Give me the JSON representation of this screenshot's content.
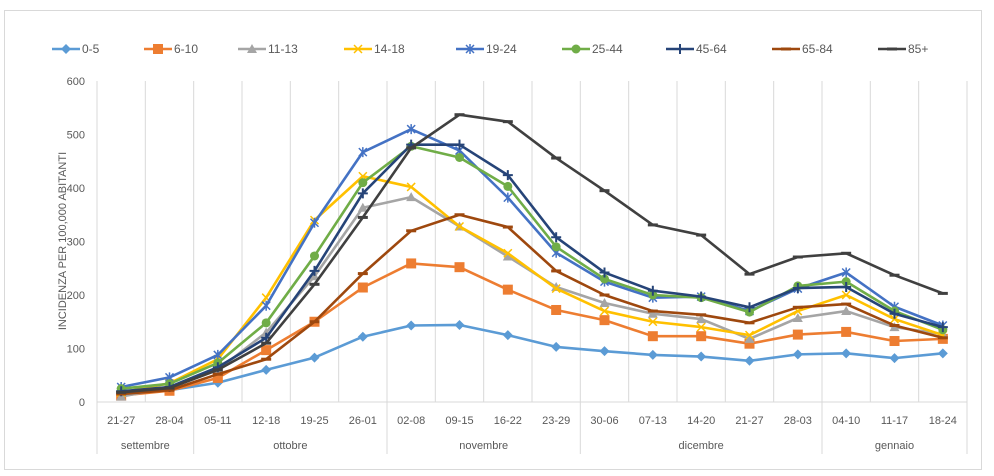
{
  "chart_data": {
    "type": "line",
    "title": "",
    "xlabel": "",
    "ylabel": "INCIDENZA PER 100,000 ABITANTI",
    "ylim": [
      0,
      600
    ],
    "yticks": [
      0,
      100,
      200,
      300,
      400,
      500,
      600
    ],
    "grid": "vertical",
    "legend_position": "top",
    "categories": [
      "21-27",
      "28-04",
      "05-11",
      "12-18",
      "19-25",
      "26-01",
      "02-08",
      "09-15",
      "16-22",
      "23-29",
      "30-06",
      "07-13",
      "14-20",
      "21-27",
      "28-03",
      "04-10",
      "11-17",
      "18-24"
    ],
    "month_groups": [
      {
        "label": "settembre",
        "span": 2
      },
      {
        "label": "ottobre",
        "span": 4
      },
      {
        "label": "novembre",
        "span": 4
      },
      {
        "label": "dicembre",
        "span": 5
      },
      {
        "label": "gennaio",
        "span": 3
      }
    ],
    "series": [
      {
        "name": "0-5",
        "color": "#5b9bd5",
        "marker": "diamond",
        "values": [
          18,
          22,
          36,
          60,
          83,
          122,
          143,
          144,
          125,
          103,
          95,
          88,
          85,
          77,
          89,
          91,
          82,
          91
        ]
      },
      {
        "name": "6-10",
        "color": "#ed7d31",
        "marker": "square",
        "values": [
          12,
          21,
          45,
          97,
          150,
          214,
          259,
          252,
          210,
          172,
          153,
          123,
          123,
          109,
          126,
          131,
          114,
          118
        ]
      },
      {
        "name": "11-13",
        "color": "#a5a5a5",
        "marker": "triangle",
        "values": [
          10,
          28,
          60,
          130,
          235,
          363,
          383,
          328,
          272,
          215,
          185,
          165,
          155,
          118,
          157,
          170,
          140,
          127
        ]
      },
      {
        "name": "14-18",
        "color": "#ffc000",
        "marker": "x",
        "values": [
          18,
          35,
          80,
          195,
          340,
          422,
          402,
          328,
          278,
          212,
          170,
          150,
          140,
          125,
          170,
          200,
          155,
          125
        ]
      },
      {
        "name": "19-24",
        "color": "#4472c4",
        "marker": "star",
        "values": [
          28,
          46,
          88,
          180,
          335,
          467,
          510,
          470,
          382,
          279,
          225,
          195,
          197,
          170,
          212,
          242,
          178,
          143
        ]
      },
      {
        "name": "25-44",
        "color": "#70ad47",
        "marker": "circle",
        "values": [
          25,
          34,
          73,
          148,
          273,
          410,
          478,
          457,
          403,
          290,
          230,
          200,
          195,
          168,
          217,
          225,
          170,
          135
        ]
      },
      {
        "name": "45-64",
        "color": "#264478",
        "marker": "plus",
        "values": [
          20,
          28,
          65,
          120,
          245,
          390,
          481,
          481,
          424,
          308,
          242,
          208,
          197,
          177,
          213,
          215,
          165,
          140
        ]
      },
      {
        "name": "65-84",
        "color": "#9e480e",
        "marker": "dash",
        "values": [
          15,
          22,
          52,
          80,
          150,
          240,
          320,
          350,
          327,
          245,
          200,
          170,
          163,
          148,
          177,
          183,
          143,
          120
        ]
      },
      {
        "name": "85+",
        "color": "#404040",
        "marker": "dash",
        "values": [
          18,
          26,
          60,
          110,
          220,
          345,
          475,
          537,
          524,
          456,
          395,
          331,
          312,
          239,
          271,
          278,
          237,
          203
        ]
      }
    ]
  }
}
